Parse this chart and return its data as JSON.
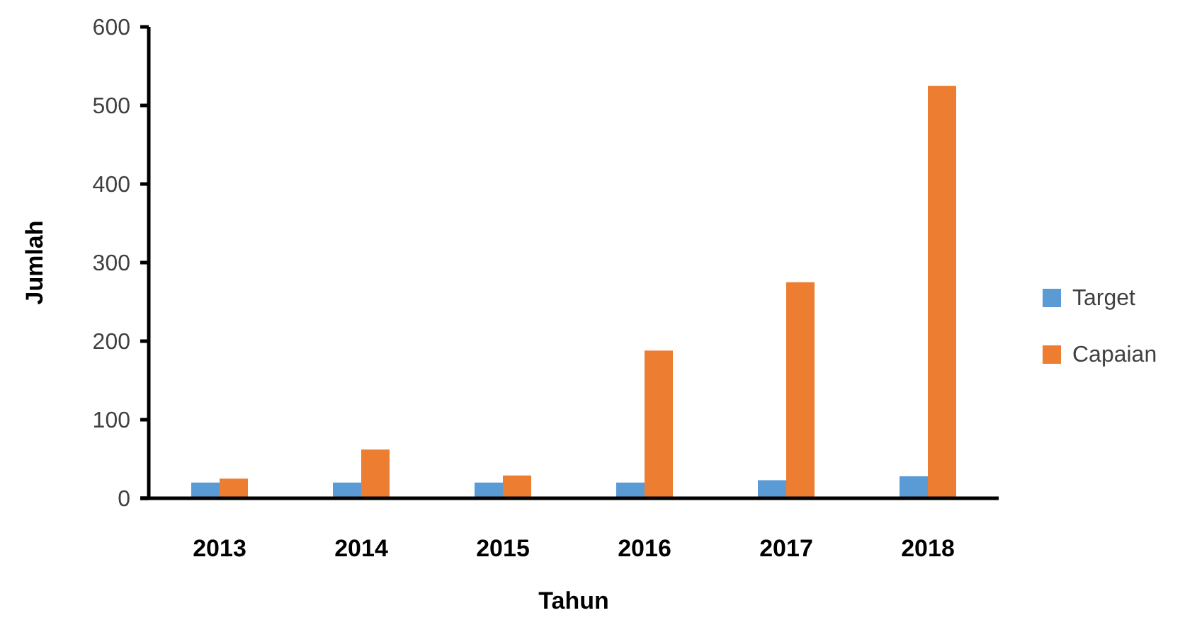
{
  "chart_data": {
    "type": "bar",
    "xlabel": "Tahun",
    "ylabel": "Jumlah",
    "categories": [
      "2013",
      "2014",
      "2015",
      "2016",
      "2017",
      "2018"
    ],
    "series": [
      {
        "name": "Target",
        "color": "#5b9bd5",
        "values": [
          20,
          20,
          20,
          20,
          23,
          28
        ]
      },
      {
        "name": "Capaian",
        "color": "#ed7d31",
        "values": [
          25,
          62,
          29,
          188,
          275,
          525
        ]
      }
    ],
    "ylim": [
      0,
      600
    ],
    "yticks": [
      0,
      100,
      200,
      300,
      400,
      500,
      600
    ],
    "grid": false,
    "legend": "right"
  }
}
